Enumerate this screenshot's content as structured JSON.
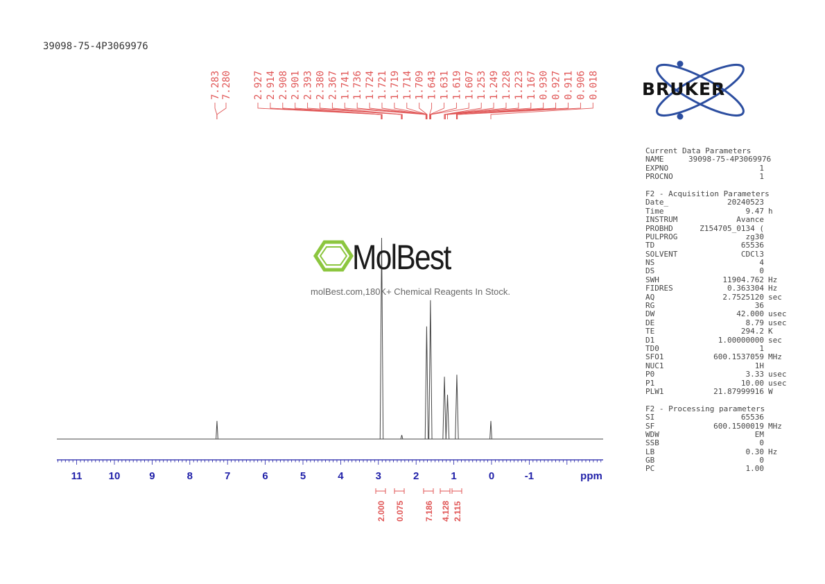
{
  "sample_name": "39098-75-4P3069976",
  "watermark": {
    "brand": "MolBest",
    "tagline": "molBest.com,180K+ Chemical Reagents In Stock."
  },
  "logo": {
    "text": "BRUKER",
    "icon": "bruker-atom-logo"
  },
  "colors": {
    "peak_labels": "#e05555",
    "axis": "#1f1fa8",
    "spectrum": "#444444",
    "logo_blue": "#2c4ea0",
    "watermark_green": "#8cc63f"
  },
  "chart_data": {
    "type": "line",
    "title": "",
    "xlabel": "ppm",
    "ylabel": "",
    "xlim": [
      11.5,
      -3.0
    ],
    "x_reversed": true,
    "tick_labels": [
      "11",
      "10",
      "9",
      "8",
      "7",
      "6",
      "5",
      "4",
      "3",
      "2",
      "1",
      "0",
      "-1"
    ],
    "tick_values": [
      11,
      10,
      9,
      8,
      7,
      6,
      5,
      4,
      3,
      2,
      1,
      0,
      -1
    ],
    "peak_label_groups": [
      {
        "labels": [
          "7.283",
          "7.280"
        ]
      },
      {
        "labels": [
          "2.927",
          "2.914",
          "2.908",
          "2.901",
          "2.393",
          "2.380",
          "2.367",
          "1.741",
          "1.736",
          "1.724",
          "1.721",
          "1.719",
          "1.714",
          "1.709",
          "1.643",
          "1.631",
          "1.619",
          "1.607",
          "1.253",
          "1.249",
          "1.228",
          "1.223",
          "1.167",
          "0.930",
          "0.927",
          "0.911",
          "0.906",
          "0.018"
        ]
      }
    ],
    "peaks": [
      {
        "ppm": 7.28,
        "height": 0.09
      },
      {
        "ppm": 2.914,
        "height": 1.0
      },
      {
        "ppm": 2.38,
        "height": 0.02
      },
      {
        "ppm": 1.72,
        "height": 0.56
      },
      {
        "ppm": 1.62,
        "height": 0.69
      },
      {
        "ppm": 1.249,
        "height": 0.31
      },
      {
        "ppm": 1.167,
        "height": 0.22
      },
      {
        "ppm": 0.92,
        "height": 0.32
      },
      {
        "ppm": 0.018,
        "height": 0.09
      }
    ],
    "integrals": [
      {
        "ppm": 2.914,
        "value": "2.000"
      },
      {
        "ppm": 2.38,
        "value": "0.075"
      },
      {
        "ppm": 1.68,
        "value": "7.186"
      },
      {
        "ppm": 1.22,
        "value": "4.128"
      },
      {
        "ppm": 0.92,
        "value": "2.115"
      }
    ]
  },
  "parameters": {
    "current": {
      "title": "Current Data Parameters",
      "rows": [
        {
          "k": "NAME",
          "v": "39098-75-4P3069976",
          "u": ""
        },
        {
          "k": "EXPNO",
          "v": "1",
          "u": ""
        },
        {
          "k": "PROCNO",
          "v": "1",
          "u": ""
        }
      ]
    },
    "acquisition": {
      "title": "F2 - Acquisition Parameters",
      "rows": [
        {
          "k": "Date_",
          "v": "20240523",
          "u": ""
        },
        {
          "k": "Time",
          "v": "9.47",
          "u": "h"
        },
        {
          "k": "INSTRUM",
          "v": "Avance",
          "u": ""
        },
        {
          "k": "PROBHD",
          "v": "Z154705_0134 (",
          "u": ""
        },
        {
          "k": "PULPROG",
          "v": "zg30",
          "u": ""
        },
        {
          "k": "TD",
          "v": "65536",
          "u": ""
        },
        {
          "k": "SOLVENT",
          "v": "CDCl3",
          "u": ""
        },
        {
          "k": "NS",
          "v": "4",
          "u": ""
        },
        {
          "k": "DS",
          "v": "0",
          "u": ""
        },
        {
          "k": "SWH",
          "v": "11904.762",
          "u": "Hz"
        },
        {
          "k": "FIDRES",
          "v": "0.363304",
          "u": "Hz"
        },
        {
          "k": "AQ",
          "v": "2.7525120",
          "u": "sec"
        },
        {
          "k": "RG",
          "v": "36",
          "u": ""
        },
        {
          "k": "DW",
          "v": "42.000",
          "u": "usec"
        },
        {
          "k": "DE",
          "v": "8.79",
          "u": "usec"
        },
        {
          "k": "TE",
          "v": "294.2",
          "u": "K"
        },
        {
          "k": "D1",
          "v": "1.00000000",
          "u": "sec"
        },
        {
          "k": "TD0",
          "v": "1",
          "u": ""
        },
        {
          "k": "SFO1",
          "v": "600.1537059",
          "u": "MHz"
        },
        {
          "k": "NUC1",
          "v": "1H",
          "u": ""
        },
        {
          "k": "P0",
          "v": "3.33",
          "u": "usec"
        },
        {
          "k": "P1",
          "v": "10.00",
          "u": "usec"
        },
        {
          "k": "PLW1",
          "v": "21.87999916",
          "u": "W"
        }
      ]
    },
    "processing": {
      "title": "F2 - Processing parameters",
      "rows": [
        {
          "k": "SI",
          "v": "65536",
          "u": ""
        },
        {
          "k": "SF",
          "v": "600.1500019",
          "u": "MHz"
        },
        {
          "k": "WDW",
          "v": "EM",
          "u": ""
        },
        {
          "k": "SSB",
          "v": "0",
          "u": ""
        },
        {
          "k": "LB",
          "v": "0.30",
          "u": "Hz"
        },
        {
          "k": "GB",
          "v": "0",
          "u": ""
        },
        {
          "k": "PC",
          "v": "1.00",
          "u": ""
        }
      ]
    }
  }
}
